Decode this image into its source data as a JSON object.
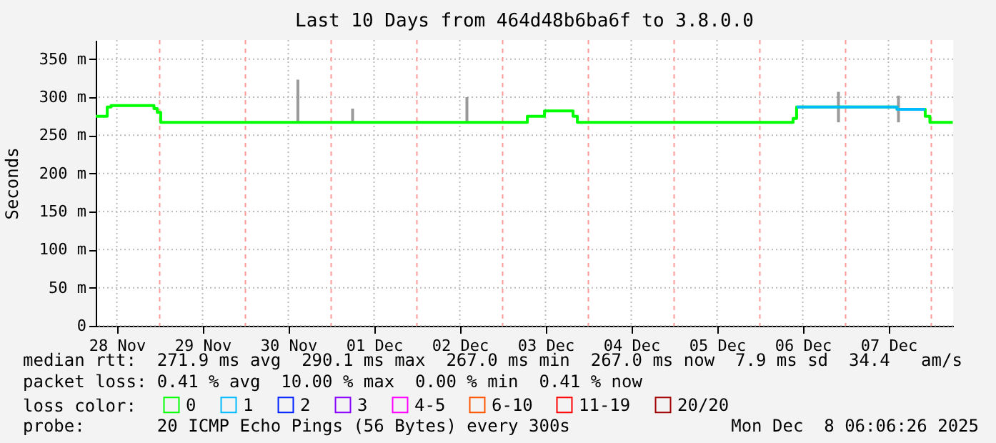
{
  "chart_data": {
    "type": "step",
    "title": "Last 10 Days from 464d48b6ba6f to 3.8.0.0",
    "ylabel": "Seconds",
    "legend_title": "loss color:",
    "legend": "bottom",
    "grid": true,
    "xlim": [
      "2025-11-28T06:06",
      "2025-12-08T06:06"
    ],
    "xticks": [
      {
        "value": "2025-11-28T12:00",
        "label": "28 Nov"
      },
      {
        "value": "2025-11-29T00:00",
        "label": null
      },
      {
        "value": "2025-11-29T12:00",
        "label": "29 Nov"
      },
      {
        "value": "2025-11-30T00:00",
        "label": null
      },
      {
        "value": "2025-11-30T12:00",
        "label": "30 Nov"
      },
      {
        "value": "2025-12-01T00:00",
        "label": null
      },
      {
        "value": "2025-12-01T12:00",
        "label": "01 Dec"
      },
      {
        "value": "2025-12-02T00:00",
        "label": null
      },
      {
        "value": "2025-12-02T12:00",
        "label": "02 Dec"
      },
      {
        "value": "2025-12-03T00:00",
        "label": null
      },
      {
        "value": "2025-12-03T12:00",
        "label": "03 Dec"
      },
      {
        "value": "2025-12-04T00:00",
        "label": null
      },
      {
        "value": "2025-12-04T12:00",
        "label": "04 Dec"
      },
      {
        "value": "2025-12-05T00:00",
        "label": null
      },
      {
        "value": "2025-12-05T12:00",
        "label": "05 Dec"
      },
      {
        "value": "2025-12-06T00:00",
        "label": null
      },
      {
        "value": "2025-12-06T12:00",
        "label": "06 Dec"
      },
      {
        "value": "2025-12-07T00:00",
        "label": null
      },
      {
        "value": "2025-12-07T12:00",
        "label": "07 Dec"
      },
      {
        "value": "2025-12-08T00:00",
        "label": null
      }
    ],
    "ylim": [
      0,
      375
    ],
    "yticks": [
      0,
      {
        "value": 50,
        "label": "50 m"
      },
      {
        "value": 100,
        "label": "100 m"
      },
      {
        "value": 150,
        "label": "150 m"
      },
      {
        "value": 200,
        "label": "200 m"
      },
      {
        "value": 250,
        "label": "250 m"
      },
      {
        "value": 300,
        "label": "300 m"
      },
      {
        "value": 350,
        "label": "350 m"
      }
    ],
    "series": [
      {
        "name": "0",
        "color": "#00ff00",
        "x": [
          "2025-11-28T06:06",
          "2025-11-28T09:19",
          "2025-11-28T10:24",
          "2025-11-28T22:24",
          "2025-11-28T23:19",
          "2025-11-29T00:17",
          "2025-12-03T06:55",
          "2025-12-03T11:43",
          "2025-12-03T19:43",
          "2025-12-03T20:55",
          "2025-12-06T09:19",
          "2025-12-06T10:17",
          "2025-12-07T14:24",
          "2025-12-07T22:17",
          "2025-12-07T23:36",
          "2025-12-08T06:00"
        ],
        "values": [
          275,
          287,
          289,
          285,
          280,
          267,
          275,
          282,
          275,
          267,
          272,
          287,
          284,
          275,
          267,
          267
        ]
      },
      {
        "name": "1",
        "color": "#00bbff",
        "x": [
          "2025-12-06T10:17",
          "2025-12-07T14:24",
          "2025-12-07T22:17"
        ],
        "values": [
          287,
          284,
          284
        ]
      },
      {
        "name": "2",
        "color": "#0022ff"
      },
      {
        "name": "3",
        "color": "#8a00ff"
      },
      {
        "name": "4-5",
        "color": "#ff00ff"
      },
      {
        "name": "6-10",
        "color": "#ff5500"
      },
      {
        "name": "11-19",
        "color": "#ff0000"
      },
      {
        "name": "20/20",
        "color": "#a10000"
      },
      {
        "type": "bar",
        "color": "#999999",
        "x": [
          "2025-11-30T14:41",
          "2025-12-01T06:00",
          "2025-12-02T14:00",
          "2025-12-06T22:00",
          "2025-12-07T14:48"
        ],
        "base": [
          267,
          267,
          267,
          267,
          267
        ],
        "values": [
          56,
          18,
          33,
          40,
          35
        ]
      }
    ],
    "annotations": [
      "median rtt:  271.9 ms avg  290.1 ms max  267.0 ms min  267.0 ms now  7.9 ms sd  34.4   am/s",
      "packet loss: 0.41 % avg  10.00 % max  0.00 % min  0.41 % now",
      "probe:       20 ICMP Echo Pings (56 Bytes) every 300s",
      "Mon Dec  8 06:06:26 2025"
    ]
  }
}
